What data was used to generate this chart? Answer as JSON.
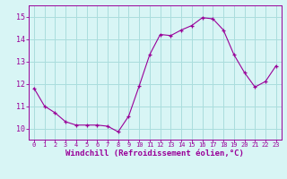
{
  "x": [
    0,
    1,
    2,
    3,
    4,
    5,
    6,
    7,
    8,
    9,
    10,
    11,
    12,
    13,
    14,
    15,
    16,
    17,
    18,
    19,
    20,
    21,
    22,
    23
  ],
  "y": [
    11.8,
    11.0,
    10.7,
    10.3,
    10.15,
    10.15,
    10.15,
    10.1,
    9.85,
    10.55,
    11.9,
    13.3,
    14.2,
    14.15,
    14.4,
    14.6,
    14.95,
    14.9,
    14.4,
    13.3,
    12.5,
    11.85,
    12.1,
    12.8
  ],
  "line_color": "#990099",
  "marker": "+",
  "marker_color": "#990099",
  "xlabel": "Windchill (Refroidissement éolien,°C)",
  "ylabel": "",
  "xlim": [
    -0.5,
    23.5
  ],
  "ylim": [
    9.5,
    15.5
  ],
  "yticks": [
    10,
    11,
    12,
    13,
    14,
    15
  ],
  "xticks": [
    0,
    1,
    2,
    3,
    4,
    5,
    6,
    7,
    8,
    9,
    10,
    11,
    12,
    13,
    14,
    15,
    16,
    17,
    18,
    19,
    20,
    21,
    22,
    23
  ],
  "bg_color": "#d8f5f5",
  "grid_color": "#aadddd",
  "axis_color": "#990099",
  "tick_color": "#990099",
  "label_color": "#990099",
  "font_family": "monospace",
  "xlabel_fontsize": 6.5,
  "xtick_fontsize": 5.0,
  "ytick_fontsize": 6.0,
  "linewidth": 0.8,
  "markersize": 3.5
}
